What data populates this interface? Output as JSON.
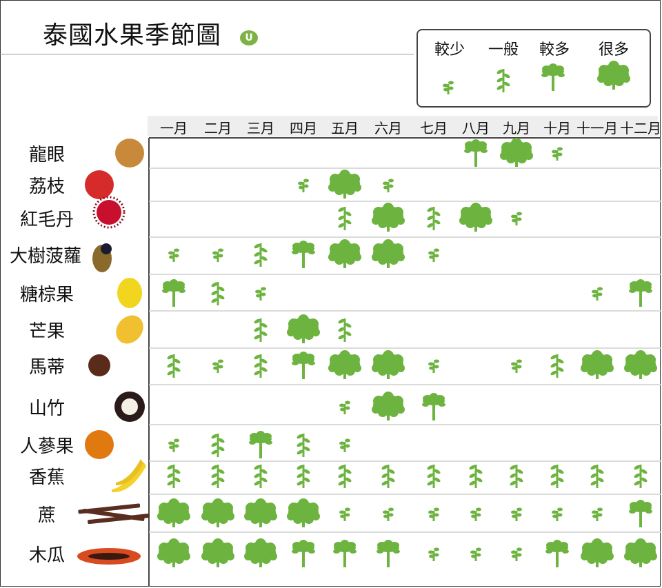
{
  "title": "泰國水果季節圖",
  "logo_text": "U",
  "legend": [
    {
      "label": "較少",
      "level": 1
    },
    {
      "label": "一般",
      "level": 2
    },
    {
      "label": "較多",
      "level": 3
    },
    {
      "label": "很多",
      "level": 4
    }
  ],
  "colors": {
    "plant": "#6db33f",
    "grid": "#cfcfcf",
    "axis": "#444444"
  },
  "chart_data": {
    "type": "heatmap",
    "title": "泰國水果季節圖",
    "categories": [
      "一月",
      "二月",
      "三月",
      "四月",
      "五月",
      "六月",
      "七月",
      "八月",
      "九月",
      "十月",
      "十一月",
      "十二月"
    ],
    "scale": {
      "0": "",
      "1": "較少",
      "2": "一般",
      "3": "較多",
      "4": "很多"
    },
    "series": [
      {
        "name": "龍眼",
        "icon": "longan-icon",
        "values": [
          0,
          0,
          0,
          0,
          0,
          0,
          0,
          3,
          4,
          1,
          0,
          0
        ]
      },
      {
        "name": "荔枝",
        "icon": "lychee-icon",
        "values": [
          0,
          0,
          0,
          1,
          4,
          1,
          0,
          0,
          0,
          0,
          0,
          0
        ]
      },
      {
        "name": "紅毛丹",
        "icon": "rambutan-icon",
        "values": [
          0,
          0,
          0,
          0,
          2,
          4,
          2,
          4,
          1,
          0,
          0,
          0
        ]
      },
      {
        "name": "大樹菠蘿",
        "icon": "jackfruit-icon",
        "values": [
          1,
          1,
          2,
          3,
          4,
          4,
          1,
          0,
          0,
          0,
          0,
          0
        ]
      },
      {
        "name": "糖棕果",
        "icon": "palm-fruit-icon",
        "values": [
          3,
          2,
          1,
          0,
          0,
          0,
          0,
          0,
          0,
          0,
          1,
          3
        ]
      },
      {
        "name": "芒果",
        "icon": "mango-icon",
        "values": [
          0,
          0,
          2,
          4,
          2,
          0,
          0,
          0,
          0,
          0,
          0,
          0
        ]
      },
      {
        "name": "馬蒂",
        "icon": "water-chestnut-icon",
        "values": [
          2,
          1,
          2,
          3,
          4,
          4,
          1,
          0,
          1,
          2,
          4,
          4
        ]
      },
      {
        "name": "山竹",
        "icon": "mangosteen-icon",
        "values": [
          0,
          0,
          0,
          0,
          1,
          4,
          3,
          0,
          0,
          0,
          0,
          0
        ]
      },
      {
        "name": "人蔘果",
        "icon": "sapodilla-icon",
        "values": [
          1,
          2,
          3,
          2,
          1,
          0,
          0,
          0,
          0,
          0,
          0,
          0
        ]
      },
      {
        "name": "香蕉",
        "icon": "banana-icon",
        "values": [
          2,
          2,
          2,
          2,
          2,
          2,
          2,
          2,
          2,
          2,
          2,
          2
        ]
      },
      {
        "name": "蔗",
        "icon": "sugarcane-icon",
        "values": [
          4,
          4,
          4,
          4,
          1,
          1,
          1,
          1,
          1,
          1,
          1,
          3
        ]
      },
      {
        "name": "木瓜",
        "icon": "papaya-icon",
        "values": [
          4,
          4,
          4,
          3,
          3,
          3,
          1,
          1,
          1,
          3,
          4,
          4
        ]
      }
    ]
  }
}
